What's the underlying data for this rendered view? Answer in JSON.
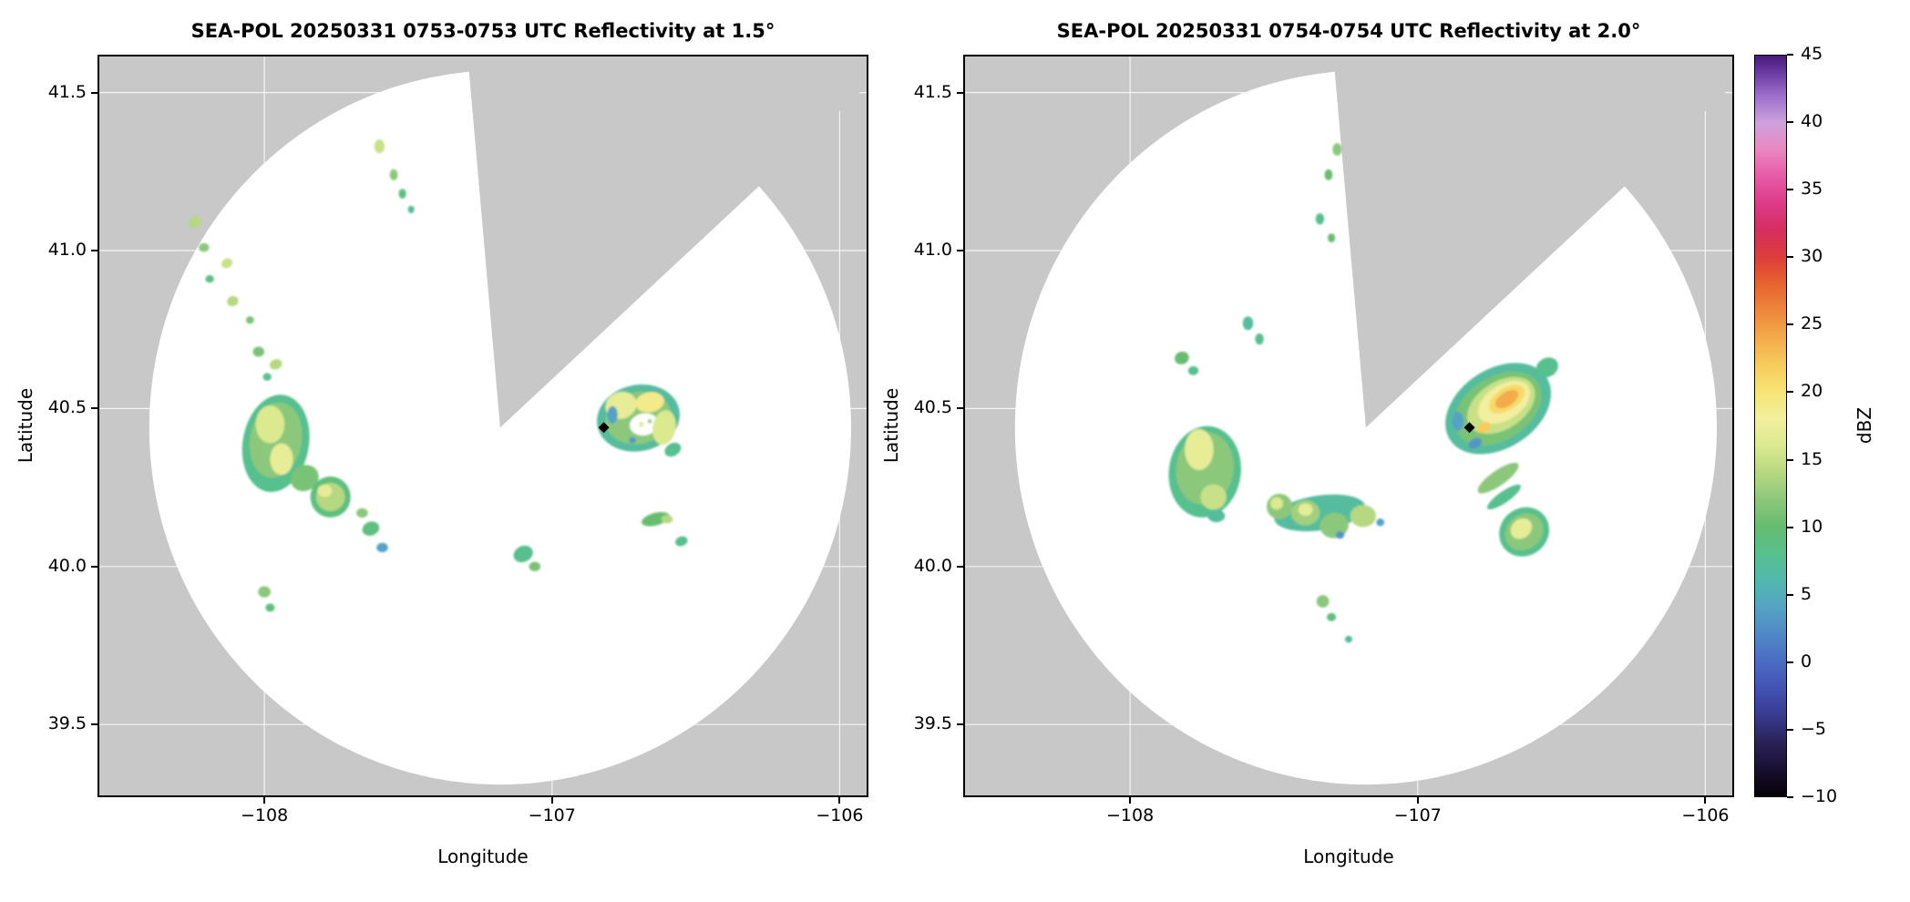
{
  "colors": {
    "background": "#ffffff",
    "masked": "#c8c8c8",
    "scan_area": "#ffffff",
    "grid": "#ffffff",
    "marker": "#000000",
    "frame": "#000000"
  },
  "chart_data": {
    "type": "heatmap",
    "description": "Two SEA-POL radar PPI reflectivity maps (lon/lat) with a shared vertical dBZ colorbar; gray = no coverage / blocked sector, white circle = scanned area, colored blobs = precipitation echoes, black diamond = site marker.",
    "colorbar": {
      "label": "dBZ",
      "min": -10,
      "max": 45,
      "ticks": [
        -10,
        -5,
        0,
        5,
        10,
        15,
        20,
        25,
        30,
        35,
        40,
        45
      ],
      "tick_labels": [
        "−10",
        "−5",
        "0",
        "5",
        "10",
        "15",
        "20",
        "25",
        "30",
        "35",
        "40",
        "45"
      ],
      "stops": [
        [
          -10,
          "#050105"
        ],
        [
          -8,
          "#181030"
        ],
        [
          -6,
          "#2a2258"
        ],
        [
          -4,
          "#383a8e"
        ],
        [
          -2,
          "#4252b4"
        ],
        [
          0,
          "#4a6cc2"
        ],
        [
          2,
          "#4f88c6"
        ],
        [
          4,
          "#54a3c4"
        ],
        [
          6,
          "#52b8ae"
        ],
        [
          8,
          "#57c08e"
        ],
        [
          10,
          "#66bd70"
        ],
        [
          12,
          "#8cc87b"
        ],
        [
          14,
          "#b5d880"
        ],
        [
          16,
          "#dbe98f"
        ],
        [
          18,
          "#f2ef9e"
        ],
        [
          20,
          "#f7e575"
        ],
        [
          22,
          "#f6cc5c"
        ],
        [
          24,
          "#f3ab4b"
        ],
        [
          26,
          "#ee883d"
        ],
        [
          28,
          "#e7642f"
        ],
        [
          30,
          "#dd3e38"
        ],
        [
          32,
          "#d62e60"
        ],
        [
          34,
          "#dc3a88"
        ],
        [
          36,
          "#e65aa6"
        ],
        [
          38,
          "#ea87c2"
        ],
        [
          40,
          "#cda2dd"
        ],
        [
          42,
          "#9e70cc"
        ],
        [
          44,
          "#63339b"
        ],
        [
          45,
          "#471a78"
        ]
      ]
    },
    "echo_format": "[lon, lat, rx_deg, ry_deg, rotation_deg, dbz, optional_color_override]",
    "panels": [
      {
        "title": "SEA-POL 20250331 0753-0753 UTC Reflectivity at 1.5°",
        "xlabel": "Longitude",
        "ylabel": "Latitude",
        "xlim": [
          -108.58,
          -105.9
        ],
        "ylim": [
          39.27,
          41.62
        ],
        "xticks": [
          -108,
          -107,
          -106
        ],
        "xtick_labels": [
          "−108",
          "−107",
          "−106"
        ],
        "yticks": [
          39.5,
          40.0,
          40.5,
          41.0,
          41.5
        ],
        "ytick_labels": [
          "39.5",
          "40.0",
          "40.5",
          "41.0",
          "41.5"
        ],
        "radar": {
          "center": [
            -107.18,
            40.44
          ],
          "radius_lon": 1.22,
          "radius_lat": 1.13,
          "blocked_sector_az": [
            -5,
            47
          ]
        },
        "marker": {
          "lon": -106.82,
          "lat": 40.44
        },
        "echoes": [
          [
            -108.24,
            41.09,
            0.022,
            0.018,
            -40,
            14
          ],
          [
            -108.21,
            41.01,
            0.018,
            0.014,
            0,
            12
          ],
          [
            -108.13,
            40.96,
            0.02,
            0.015,
            -30,
            15
          ],
          [
            -108.19,
            40.91,
            0.015,
            0.012,
            0,
            9
          ],
          [
            -108.11,
            40.84,
            0.02,
            0.016,
            -20,
            14
          ],
          [
            -108.05,
            40.78,
            0.014,
            0.012,
            0,
            11
          ],
          [
            -107.6,
            41.33,
            0.018,
            0.022,
            0,
            15
          ],
          [
            -107.55,
            41.24,
            0.014,
            0.018,
            0,
            12
          ],
          [
            -107.52,
            41.18,
            0.013,
            0.016,
            0,
            9
          ],
          [
            -107.49,
            41.13,
            0.011,
            0.012,
            0,
            7
          ],
          [
            -108.02,
            40.68,
            0.02,
            0.016,
            0,
            11
          ],
          [
            -107.96,
            40.64,
            0.022,
            0.016,
            -20,
            14
          ],
          [
            -107.99,
            40.6,
            0.015,
            0.012,
            0,
            8
          ],
          [
            -107.96,
            40.39,
            0.115,
            0.155,
            10,
            8
          ],
          [
            -107.96,
            40.4,
            0.09,
            0.12,
            10,
            12
          ],
          [
            -107.98,
            40.45,
            0.05,
            0.06,
            0,
            16
          ],
          [
            -107.94,
            40.34,
            0.04,
            0.05,
            0,
            17
          ],
          [
            -107.86,
            40.28,
            0.05,
            0.04,
            -30,
            11
          ],
          [
            -107.77,
            40.22,
            0.07,
            0.065,
            0,
            9
          ],
          [
            -107.77,
            40.22,
            0.05,
            0.045,
            0,
            14
          ],
          [
            -107.79,
            40.24,
            0.025,
            0.02,
            0,
            17
          ],
          [
            -107.63,
            40.12,
            0.03,
            0.022,
            -20,
            9
          ],
          [
            -107.59,
            40.06,
            0.02,
            0.015,
            0,
            4
          ],
          [
            -107.66,
            40.17,
            0.02,
            0.015,
            0,
            12
          ],
          [
            -107.1,
            40.04,
            0.035,
            0.025,
            -25,
            8
          ],
          [
            -107.06,
            40.0,
            0.02,
            0.015,
            0,
            11
          ],
          [
            -108.0,
            39.92,
            0.022,
            0.018,
            0,
            12
          ],
          [
            -107.98,
            39.87,
            0.016,
            0.013,
            0,
            9
          ],
          [
            -106.7,
            40.47,
            0.145,
            0.105,
            -12,
            7
          ],
          [
            -106.7,
            40.47,
            0.115,
            0.082,
            -12,
            12
          ],
          [
            -106.76,
            40.51,
            0.055,
            0.042,
            -20,
            17
          ],
          [
            -106.66,
            40.52,
            0.05,
            0.032,
            -10,
            19
          ],
          [
            -106.68,
            40.45,
            0.05,
            0.035,
            -10,
            null,
            "#ffffff"
          ],
          [
            -106.69,
            40.45,
            0.008,
            0.008,
            0,
            16
          ],
          [
            -106.66,
            40.46,
            0.007,
            0.007,
            0,
            12
          ],
          [
            -106.61,
            40.44,
            0.04,
            0.055,
            10,
            16
          ],
          [
            -106.79,
            40.48,
            0.018,
            0.028,
            0,
            4
          ],
          [
            -106.72,
            40.4,
            0.012,
            0.01,
            0,
            3
          ],
          [
            -106.58,
            40.37,
            0.03,
            0.02,
            -30,
            8
          ],
          [
            -106.64,
            40.15,
            0.05,
            0.02,
            -15,
            10
          ],
          [
            -106.6,
            40.15,
            0.02,
            0.013,
            0,
            14
          ],
          [
            -106.55,
            40.08,
            0.022,
            0.015,
            -20,
            8
          ]
        ]
      },
      {
        "title": "SEA-POL 20250331 0754-0754 UTC Reflectivity at 2.0°",
        "xlabel": "Longitude",
        "ylabel": "Latitude",
        "xlim": [
          -108.58,
          -105.9
        ],
        "ylim": [
          39.27,
          41.62
        ],
        "xticks": [
          -108,
          -107,
          -106
        ],
        "xtick_labels": [
          "−108",
          "−107",
          "−106"
        ],
        "yticks": [
          39.5,
          40.0,
          40.5,
          41.0,
          41.5
        ],
        "ytick_labels": [
          "39.5",
          "40.0",
          "40.5",
          "41.0",
          "41.5"
        ],
        "radar": {
          "center": [
            -107.18,
            40.44
          ],
          "radius_lon": 1.22,
          "radius_lat": 1.13,
          "blocked_sector_az": [
            -5,
            47
          ]
        },
        "marker": {
          "lon": -106.82,
          "lat": 40.44
        },
        "echoes": [
          [
            -107.28,
            41.32,
            0.016,
            0.02,
            0,
            12
          ],
          [
            -107.31,
            41.24,
            0.014,
            0.017,
            0,
            10
          ],
          [
            -107.34,
            41.1,
            0.015,
            0.018,
            0,
            8
          ],
          [
            -107.3,
            41.04,
            0.013,
            0.014,
            0,
            10
          ],
          [
            -107.82,
            40.66,
            0.025,
            0.02,
            -20,
            10
          ],
          [
            -107.78,
            40.62,
            0.018,
            0.014,
            0,
            8
          ],
          [
            -107.59,
            40.77,
            0.018,
            0.022,
            0,
            7
          ],
          [
            -107.55,
            40.72,
            0.015,
            0.018,
            0,
            8
          ],
          [
            -107.74,
            40.3,
            0.125,
            0.145,
            8,
            8
          ],
          [
            -107.74,
            40.31,
            0.1,
            0.115,
            8,
            12
          ],
          [
            -107.76,
            40.37,
            0.05,
            0.065,
            0,
            17
          ],
          [
            -107.71,
            40.22,
            0.045,
            0.04,
            0,
            15
          ],
          [
            -107.7,
            40.16,
            0.03,
            0.02,
            0,
            7
          ],
          [
            -107.34,
            40.17,
            0.16,
            0.055,
            -8,
            7
          ],
          [
            -107.48,
            40.19,
            0.045,
            0.04,
            0,
            12
          ],
          [
            -107.49,
            40.2,
            0.022,
            0.02,
            0,
            16
          ],
          [
            -107.39,
            40.17,
            0.05,
            0.04,
            0,
            13
          ],
          [
            -107.39,
            40.18,
            0.025,
            0.02,
            0,
            17
          ],
          [
            -107.29,
            40.13,
            0.05,
            0.04,
            -10,
            12
          ],
          [
            -107.27,
            40.1,
            0.015,
            0.012,
            0,
            3
          ],
          [
            -107.19,
            40.16,
            0.045,
            0.035,
            0,
            14
          ],
          [
            -107.13,
            40.14,
            0.014,
            0.012,
            0,
            4
          ],
          [
            -106.72,
            40.5,
            0.2,
            0.125,
            -33,
            7
          ],
          [
            -106.72,
            40.5,
            0.165,
            0.1,
            -33,
            11
          ],
          [
            -106.71,
            40.51,
            0.13,
            0.075,
            -33,
            15
          ],
          [
            -106.7,
            40.52,
            0.1,
            0.055,
            -33,
            18
          ],
          [
            -106.69,
            40.53,
            0.07,
            0.035,
            -33,
            21
          ],
          [
            -106.69,
            40.53,
            0.045,
            0.022,
            -33,
            24
          ],
          [
            -106.77,
            40.44,
            0.025,
            0.015,
            -33,
            22
          ],
          [
            -106.86,
            40.46,
            0.02,
            0.03,
            0,
            4
          ],
          [
            -106.8,
            40.39,
            0.025,
            0.015,
            -30,
            3
          ],
          [
            -106.55,
            40.63,
            0.04,
            0.03,
            -30,
            8
          ],
          [
            -106.72,
            40.28,
            0.085,
            0.024,
            -35,
            12
          ],
          [
            -106.7,
            40.22,
            0.07,
            0.018,
            -35,
            8
          ],
          [
            -106.63,
            40.11,
            0.09,
            0.075,
            -40,
            8
          ],
          [
            -106.63,
            40.11,
            0.07,
            0.055,
            -40,
            12
          ],
          [
            -106.64,
            40.12,
            0.04,
            0.03,
            -40,
            17
          ],
          [
            -107.33,
            39.89,
            0.022,
            0.02,
            0,
            12
          ],
          [
            -107.3,
            39.84,
            0.016,
            0.013,
            0,
            9
          ],
          [
            -107.24,
            39.77,
            0.013,
            0.011,
            0,
            7
          ]
        ]
      }
    ]
  }
}
